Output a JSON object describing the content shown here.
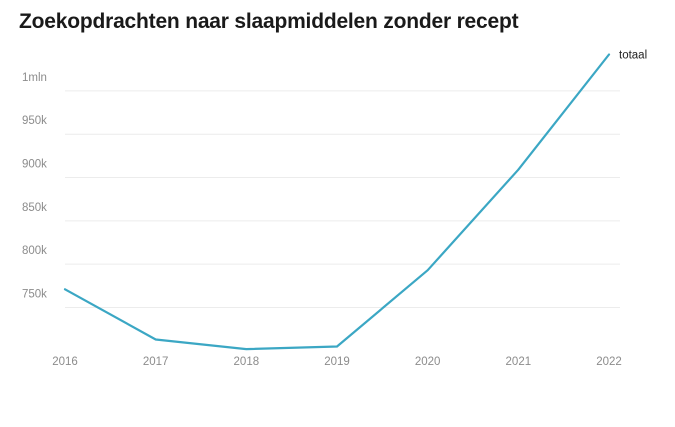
{
  "chart_data": {
    "type": "line",
    "title": "Zoekopdrachten naar slaapmiddelen zonder recept",
    "xlabel": "",
    "ylabel": "",
    "x": [
      "2016",
      "2017",
      "2018",
      "2019",
      "2020",
      "2021",
      "2022"
    ],
    "series": [
      {
        "name": "totaal",
        "values": [
          771000,
          713000,
          702000,
          705000,
          793000,
          909000,
          1042000
        ],
        "color": "#3ba7c4"
      }
    ],
    "ylim": [
      700000,
      1050000
    ],
    "yticks": [
      {
        "value": 750000,
        "label": "750k"
      },
      {
        "value": 800000,
        "label": "800k"
      },
      {
        "value": 850000,
        "label": "850k"
      },
      {
        "value": 900000,
        "label": "900k"
      },
      {
        "value": 950000,
        "label": "950k"
      },
      {
        "value": 1000000,
        "label": "1mln"
      }
    ],
    "grid": true,
    "grid_color": "#ececec",
    "legend": "end-of-line"
  }
}
